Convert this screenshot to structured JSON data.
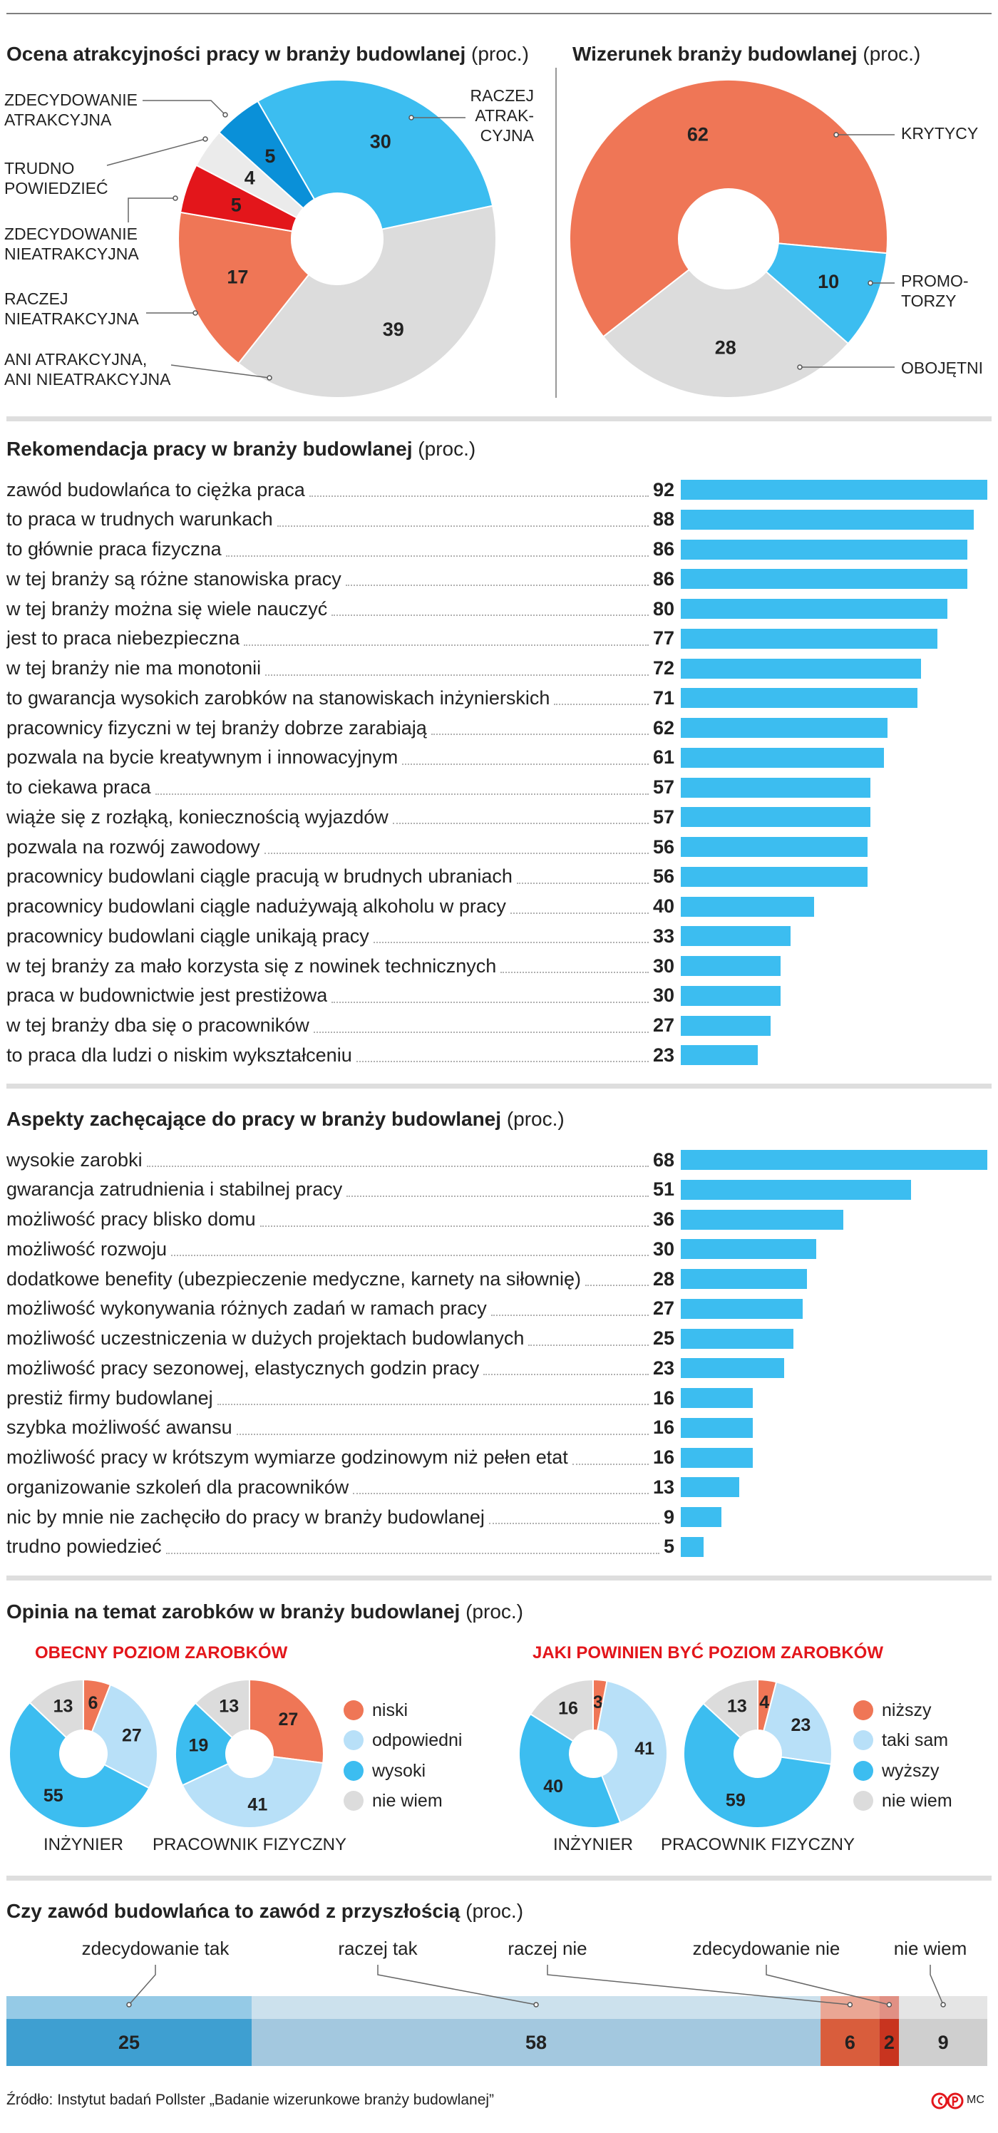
{
  "chart_data": [
    {
      "type": "pie",
      "title": "Ocena atrakcyjności pracy w branży budowlanej",
      "unit": "(proc.)",
      "categories": [
        "RACZEJ\nATRAK-\nCYJNA",
        "ANI ATRAKCYJNA,\nANI NIEATRAKCYJNA",
        "RACZEJ\nNIEATRAKCYJNA",
        "ZDECYDOWANIE\nNIEATRAKCYJNA",
        "TRUDNO\nPOWIEDZIEĆ",
        "ZDECYDOWANIE\nATRAKCYJNA"
      ],
      "values": [
        30,
        39,
        17,
        5,
        4,
        5
      ],
      "colors": [
        "#3cbdf0",
        "#dcdcdc",
        "#ef7656",
        "#e3161b",
        "#ebebeb",
        "#0a90d8"
      ]
    },
    {
      "type": "pie",
      "title": "Wizerunek branży budowlanej",
      "unit": "(proc.)",
      "categories": [
        "KRYTYCY",
        "PROMO-\nTORZY",
        "OBOJĘTNI"
      ],
      "values": [
        62,
        10,
        28
      ],
      "colors": [
        "#ef7656",
        "#3cbdf0",
        "#dcdcdc"
      ]
    },
    {
      "type": "bar",
      "title": "Rekomendacja pracy w branży budowlanej",
      "unit": "(proc.)",
      "color": "#3cbdf0",
      "categories": [
        "zawód budowlańca to ciężka praca",
        "to praca w trudnych warunkach",
        "to głównie praca fizyczna",
        "w tej branży są różne stanowiska pracy",
        "w tej branży można się wiele nauczyć",
        "jest to praca niebezpieczna",
        "w tej branży nie ma monotonii",
        "to gwarancja wysokich zarobków na stanowiskach inżynierskich",
        "pracownicy fizyczni w tej branży dobrze zarabiają",
        "pozwala na bycie kreatywnym i innowacyjnym",
        "to ciekawa praca",
        "wiąże się z rozłąką, koniecznością wyjazdów",
        "pozwala na rozwój zawodowy",
        "pracownicy budowlani ciągle pracują w brudnych ubraniach",
        "pracownicy budowlani ciągle nadużywają alkoholu w pracy",
        "pracownicy budowlani ciągle unikają pracy",
        "w tej branży za mało korzysta się z nowinek technicznych",
        "praca w budownictwie jest prestiżowa",
        "w tej branży dba się o pracowników",
        "to praca dla ludzi o niskim wykształceniu"
      ],
      "values": [
        92,
        88,
        86,
        86,
        80,
        77,
        72,
        71,
        62,
        61,
        57,
        57,
        56,
        56,
        40,
        33,
        30,
        30,
        27,
        23
      ]
    },
    {
      "type": "bar",
      "title": "Aspekty zachęcające do pracy w branży budowlanej",
      "unit": "(proc.)",
      "color": "#3cbdf0",
      "categories": [
        "wysokie zarobki",
        "gwarancja zatrudnienia i stabilnej pracy",
        "możliwość pracy blisko domu",
        "możliwość rozwoju",
        "dodatkowe benefity (ubezpieczenie medyczne, karnety na siłownię)",
        "możliwość wykonywania różnych zadań w ramach pracy",
        "możliwość uczestniczenia w dużych projektach budowlanych",
        "możliwość pracy sezonowej, elastycznych godzin pracy",
        "prestiż firmy budowlanej",
        "szybka możliwość awansu",
        "możliwość pracy w krótszym wymiarze godzinowym niż pełen etat",
        "organizowanie szkoleń dla pracowników",
        "nic by mnie nie zachęciło do pracy w branży budowlanej",
        "trudno powiedzieć"
      ],
      "values": [
        68,
        51,
        36,
        30,
        28,
        27,
        25,
        23,
        16,
        16,
        16,
        13,
        9,
        5
      ]
    },
    {
      "type": "donuts",
      "title": "Opinia na temat zarobków w branży budowlanej",
      "unit": "(proc.)",
      "colors": [
        "#ef7656",
        "#b8e0f8",
        "#3cbdf0",
        "#dcdcdc"
      ],
      "groups": [
        {
          "title": "OBECNY POZIOM ZAROBKÓW",
          "categories": [
            "niski",
            "odpowiedni",
            "wysoki",
            "nie wiem"
          ],
          "pies": [
            {
              "name": "INŻYNIER",
              "values": [
                6,
                27,
                55,
                13
              ]
            },
            {
              "name": "PRACOWNIK FIZYCZNY",
              "values": [
                27,
                41,
                19,
                13
              ]
            }
          ]
        },
        {
          "title": "JAKI POWINIEN BYĆ POZIOM ZAROBKÓW",
          "categories": [
            "niższy",
            "taki sam",
            "wyższy",
            "nie wiem"
          ],
          "pies": [
            {
              "name": "INŻYNIER",
              "values": [
                3,
                41,
                40,
                16
              ]
            },
            {
              "name": "PRACOWNIK FIZYCZNY",
              "values": [
                4,
                23,
                59,
                13
              ]
            }
          ]
        }
      ]
    },
    {
      "type": "stacked",
      "title": "Czy zawód budowlańca to zawód z przyszłością",
      "unit": "(proc.)",
      "categories": [
        "zdecydowanie tak",
        "raczej tak",
        "raczej nie",
        "zdecydowanie nie",
        "nie wiem"
      ],
      "values": [
        25,
        58,
        6,
        2,
        9
      ],
      "colors": [
        "#3e9fd1",
        "#a3c8df",
        "#d95d3c",
        "#c8341f",
        "#cfcfcf"
      ]
    }
  ],
  "source": "Źródło: Instytut badań Pollster „Badanie wizerunkowe branży budowlanej”",
  "credit": "MC"
}
